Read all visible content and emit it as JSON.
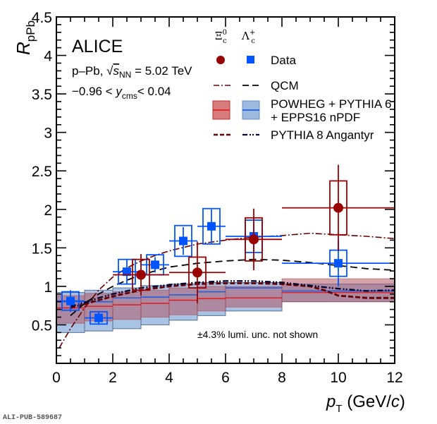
{
  "chart_data": {
    "type": "scatter",
    "title": "",
    "xlabel": "p_T (GeV/c)",
    "xlabel_parts": {
      "var": "p",
      "sub": "T",
      "unit_open": " (GeV/",
      "unit_var": "c",
      "unit_close": ")"
    },
    "ylabel": "R_pPb",
    "ylabel_parts": {
      "var": "R",
      "sub": "pPb"
    },
    "xlim": [
      0,
      12
    ],
    "ylim": [
      0,
      4.5
    ],
    "x_ticks": [
      0,
      2,
      4,
      6,
      8,
      10,
      12
    ],
    "x_tick_labels": [
      "0",
      "2",
      "4",
      "6",
      "8",
      "10",
      "12"
    ],
    "y_ticks": [
      0.5,
      1,
      1.5,
      2,
      2.5,
      3,
      3.5,
      4,
      4.5
    ],
    "y_tick_labels": [
      "0.5",
      "1",
      "1.5",
      "2",
      "2.5",
      "3",
      "3.5",
      "4",
      "4.5"
    ],
    "grid": false,
    "legend_placement": "top-right",
    "annotations": {
      "experiment": "ALICE",
      "system_prefix": "p–Pb, ",
      "system_sqrt_var": "s",
      "system_sqrt_sub": "NN",
      "system_suffix": " = 5.02 TeV",
      "rapidity_prefix": "−0.96 < ",
      "rapidity_var": "y",
      "rapidity_sub": "cms",
      "rapidity_suffix": "< 0.04",
      "lumi_note": "±4.3% lumi. unc. not shown",
      "pub_id": "ALI-PUB-589687"
    },
    "legend": {
      "column_headers": [
        {
          "symbol": "Ξ",
          "sup": "0",
          "sub": "c"
        },
        {
          "symbol": "Λ",
          "sup": "+",
          "sub": "c"
        }
      ],
      "entries": [
        {
          "label": "Data",
          "style": "markers"
        },
        {
          "label": "QCM",
          "style": "lines"
        },
        {
          "label": "POWHEG + PYTHIA 6",
          "label2": "+ EPPS16 nPDF",
          "style": "bands"
        },
        {
          "label": "PYTHIA 8 Angantyr",
          "style": "lines"
        }
      ]
    },
    "colors": {
      "xi_data": "#990000",
      "lambda_data": "#0055ff",
      "xi_qcm": "#660000",
      "lambda_qcm": "#000000",
      "xi_band_fill": "#c85050",
      "xi_band_line": "#e02020",
      "lambda_band_fill": "#7ba3d6",
      "lambda_band_line": "#1f5fe0",
      "overlap_fill": "#8c6878",
      "xi_angantyr": "#660000",
      "lambda_angantyr": "#000033"
    },
    "series": [
      {
        "name": "Lambda_c+ Data",
        "particle": "Lambda_c+",
        "marker": "square",
        "points": [
          {
            "x": 0.5,
            "xlo": 0,
            "xhi": 1,
            "y": 0.81,
            "stat": 0.14,
            "syst": 0.12
          },
          {
            "x": 1.5,
            "xlo": 1,
            "xhi": 2,
            "y": 0.59,
            "stat": 0.09,
            "syst": 0.08
          },
          {
            "x": 2.5,
            "xlo": 2,
            "xhi": 3,
            "y": 1.19,
            "stat": 0.16,
            "syst": 0.16
          },
          {
            "x": 3.5,
            "xlo": 3,
            "xhi": 4,
            "y": 1.28,
            "stat": 0.1,
            "syst": 0.13
          },
          {
            "x": 4.5,
            "xlo": 4,
            "xhi": 5,
            "y": 1.59,
            "stat": 0.18,
            "syst": 0.2
          },
          {
            "x": 5.5,
            "xlo": 5,
            "xhi": 6,
            "y": 1.78,
            "stat": 0.22,
            "syst": 0.23
          },
          {
            "x": 7.0,
            "xlo": 6,
            "xhi": 8,
            "y": 1.65,
            "stat": 0.2,
            "syst": 0.21
          },
          {
            "x": 10.0,
            "xlo": 8,
            "xhi": 12,
            "y": 1.3,
            "stat": 0.3,
            "syst": 0.17
          }
        ]
      },
      {
        "name": "Xi_c0 Data",
        "particle": "Xi_c0",
        "marker": "circle",
        "points": [
          {
            "x": 3.0,
            "xlo": 2,
            "xhi": 4,
            "y": 1.15,
            "stat": 0.27,
            "syst": 0.2
          },
          {
            "x": 5.0,
            "xlo": 4,
            "xhi": 6,
            "y": 1.18,
            "stat": 0.4,
            "syst": 0.2
          },
          {
            "x": 7.0,
            "xlo": 6,
            "xhi": 8,
            "y": 1.61,
            "stat": 0.4,
            "syst": 0.28
          },
          {
            "x": 10.0,
            "xlo": 8,
            "xhi": 12,
            "y": 2.02,
            "stat": 0.56,
            "syst": 0.35
          }
        ]
      },
      {
        "name": "Xi_c0 QCM",
        "style": "dash-dot",
        "x": [
          0.1,
          0.5,
          1.0,
          1.5,
          2.0,
          2.5,
          3.0,
          3.5,
          4.0,
          5.0,
          6.0,
          7.0,
          8.0,
          9.0,
          10.0,
          11.0,
          12.0
        ],
        "y": [
          0.2,
          0.45,
          0.72,
          0.95,
          1.12,
          1.24,
          1.33,
          1.4,
          1.46,
          1.55,
          1.6,
          1.64,
          1.66,
          1.69,
          1.67,
          1.65,
          1.62
        ]
      },
      {
        "name": "Lambda_c+ QCM",
        "style": "dashed",
        "x": [
          0.5,
          1.0,
          1.5,
          2.0,
          2.5,
          3.0,
          3.5,
          4.0,
          5.0,
          6.0,
          7.0,
          8.0,
          9.0,
          10.0,
          11.0,
          12.0
        ],
        "y": [
          0.62,
          0.78,
          0.9,
          1.0,
          1.08,
          1.15,
          1.2,
          1.25,
          1.3,
          1.33,
          1.35,
          1.34,
          1.31,
          1.27,
          1.23,
          1.21
        ]
      },
      {
        "name": "Xi_c0 PYTHIA 8 Angantyr",
        "style": "dashed-thick",
        "x": [
          0.5,
          1.0,
          1.5,
          2.0,
          3.0,
          4.0,
          5.0,
          6.0,
          7.0,
          8.0,
          9.0,
          9.5,
          10.0,
          11.0,
          12.0
        ],
        "y": [
          0.72,
          0.77,
          0.82,
          0.87,
          0.95,
          1.0,
          1.03,
          1.04,
          1.04,
          1.03,
          1.0,
          0.95,
          0.88,
          0.85,
          0.85
        ]
      },
      {
        "name": "Lambda_c+ PYTHIA 8 Angantyr",
        "style": "dash-dot-dot",
        "x": [
          0.5,
          1.0,
          1.5,
          2.0,
          3.0,
          4.0,
          5.0,
          6.0,
          7.0,
          8.0,
          9.0,
          10.0,
          11.0,
          12.0
        ],
        "y": [
          0.74,
          0.79,
          0.85,
          0.9,
          0.98,
          1.02,
          1.05,
          1.07,
          1.07,
          1.05,
          1.01,
          0.97,
          0.94,
          0.95
        ]
      },
      {
        "name": "Xi_c0 POWHEG + PYTHIA 6 + EPPS16 nPDF",
        "style": "band",
        "bins": [
          {
            "xlo": 0,
            "xhi": 1,
            "center": 0.72,
            "lo": 0.52,
            "hi": 0.88
          },
          {
            "xlo": 1,
            "xhi": 2,
            "center": 0.74,
            "lo": 0.55,
            "hi": 0.91
          },
          {
            "xlo": 2,
            "xhi": 3,
            "center": 0.76,
            "lo": 0.57,
            "hi": 0.93
          },
          {
            "xlo": 3,
            "xhi": 4,
            "center": 0.78,
            "lo": 0.6,
            "hi": 0.95
          },
          {
            "xlo": 4,
            "xhi": 5,
            "center": 0.82,
            "lo": 0.63,
            "hi": 0.98
          },
          {
            "xlo": 5,
            "xhi": 6,
            "center": 0.84,
            "lo": 0.68,
            "hi": 1.0
          },
          {
            "xlo": 6,
            "xhi": 8,
            "center": 0.85,
            "lo": 0.73,
            "hi": 1.0
          },
          {
            "xlo": 8,
            "xhi": 12,
            "center": 0.92,
            "lo": 0.8,
            "hi": 1.1
          }
        ]
      },
      {
        "name": "Lambda_c+ POWHEG + PYTHIA 6 + EPPS16 nPDF",
        "style": "band",
        "bins": [
          {
            "xlo": 0,
            "xhi": 1,
            "center": 0.8,
            "lo": 0.4,
            "hi": 0.92
          },
          {
            "xlo": 1,
            "xhi": 2,
            "center": 0.8,
            "lo": 0.42,
            "hi": 0.95
          },
          {
            "xlo": 2,
            "xhi": 3,
            "center": 0.85,
            "lo": 0.45,
            "hi": 0.98
          },
          {
            "xlo": 3,
            "xhi": 4,
            "center": 0.86,
            "lo": 0.5,
            "hi": 1.01
          },
          {
            "xlo": 4,
            "xhi": 5,
            "center": 0.89,
            "lo": 0.56,
            "hi": 1.03
          },
          {
            "xlo": 5,
            "xhi": 6,
            "center": 0.93,
            "lo": 0.62,
            "hi": 1.05
          },
          {
            "xlo": 6,
            "xhi": 8,
            "center": 0.98,
            "lo": 0.68,
            "hi": 1.05
          },
          {
            "xlo": 8,
            "xhi": 12,
            "center": 0.94,
            "lo": 0.8,
            "hi": 1.03
          }
        ]
      }
    ]
  }
}
